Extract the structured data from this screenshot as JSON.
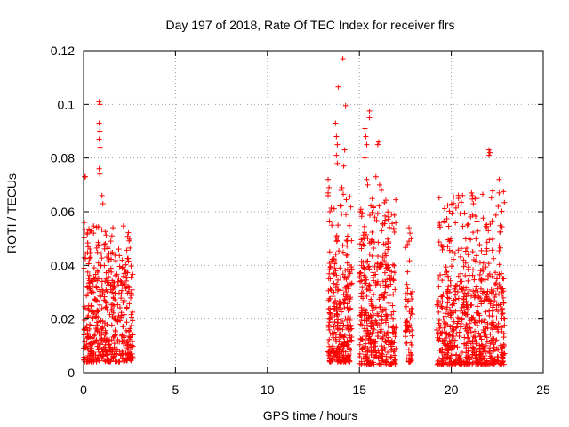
{
  "chart_data": {
    "type": "scatter",
    "title": "Day 197 of 2018, Rate Of TEC Index for receiver flrs",
    "xlabel": "GPS time / hours",
    "ylabel": "ROTI / TECUs",
    "xlim": [
      0,
      25
    ],
    "ylim": [
      0,
      0.12
    ],
    "grid": true,
    "legend": "none",
    "marker": "plus",
    "color": "#ff0000",
    "x_ticks": [
      {
        "value": 0,
        "label": "0"
      },
      {
        "value": 5,
        "label": "5"
      },
      {
        "value": 10,
        "label": "10"
      },
      {
        "value": 15,
        "label": "15"
      },
      {
        "value": 20,
        "label": "20"
      },
      {
        "value": 25,
        "label": "25"
      }
    ],
    "y_ticks": [
      {
        "value": 0,
        "label": "0"
      },
      {
        "value": 0.02,
        "label": "0.02"
      },
      {
        "value": 0.04,
        "label": "0.04"
      },
      {
        "value": 0.06,
        "label": "0.06"
      },
      {
        "value": 0.08,
        "label": "0.08"
      },
      {
        "value": 0.1,
        "label": "0.1"
      },
      {
        "value": 0.12,
        "label": "0.12"
      }
    ],
    "series": [
      {
        "name": "ROTI",
        "clusters": [
          {
            "x_range": [
              0.0,
              2.7
            ],
            "y_dense": [
              0.004,
              0.035
            ],
            "y_peak": 0.055,
            "points": 520
          },
          {
            "x_range": [
              13.3,
              14.6
            ],
            "y_dense": [
              0.004,
              0.04
            ],
            "y_peak": 0.068,
            "points": 300
          },
          {
            "x_range": [
              15.0,
              17.0
            ],
            "y_dense": [
              0.003,
              0.04
            ],
            "y_peak": 0.065,
            "points": 420
          },
          {
            "x_range": [
              17.5,
              17.9
            ],
            "y_dense": [
              0.004,
              0.03
            ],
            "y_peak": 0.055,
            "points": 60
          },
          {
            "x_range": [
              19.2,
              22.9
            ],
            "y_dense": [
              0.003,
              0.035
            ],
            "y_peak": 0.068,
            "points": 700
          }
        ],
        "outliers": [
          {
            "x": 0.05,
            "y": 0.073
          },
          {
            "x": 0.1,
            "y": 0.073
          },
          {
            "x": 0.05,
            "y": 0.056
          },
          {
            "x": 0.85,
            "y": 0.101
          },
          {
            "x": 0.9,
            "y": 0.1
          },
          {
            "x": 0.85,
            "y": 0.093
          },
          {
            "x": 0.88,
            "y": 0.09
          },
          {
            "x": 0.85,
            "y": 0.087
          },
          {
            "x": 0.9,
            "y": 0.084
          },
          {
            "x": 0.85,
            "y": 0.076
          },
          {
            "x": 0.88,
            "y": 0.074
          },
          {
            "x": 1.0,
            "y": 0.066
          },
          {
            "x": 1.05,
            "y": 0.063
          },
          {
            "x": 1.6,
            "y": 0.054
          },
          {
            "x": 13.3,
            "y": 0.072
          },
          {
            "x": 13.35,
            "y": 0.069
          },
          {
            "x": 13.3,
            "y": 0.066
          },
          {
            "x": 13.7,
            "y": 0.093
          },
          {
            "x": 13.75,
            "y": 0.088
          },
          {
            "x": 13.8,
            "y": 0.085
          },
          {
            "x": 13.75,
            "y": 0.081
          },
          {
            "x": 13.8,
            "y": 0.078
          },
          {
            "x": 13.85,
            "y": 0.1065
          },
          {
            "x": 14.1,
            "y": 0.117
          },
          {
            "x": 14.25,
            "y": 0.0995
          },
          {
            "x": 14.2,
            "y": 0.083
          },
          {
            "x": 14.15,
            "y": 0.077
          },
          {
            "x": 14.05,
            "y": 0.069
          },
          {
            "x": 15.3,
            "y": 0.091
          },
          {
            "x": 15.35,
            "y": 0.088
          },
          {
            "x": 15.4,
            "y": 0.085
          },
          {
            "x": 15.3,
            "y": 0.08
          },
          {
            "x": 15.55,
            "y": 0.0975
          },
          {
            "x": 15.55,
            "y": 0.095
          },
          {
            "x": 15.4,
            "y": 0.072
          },
          {
            "x": 15.45,
            "y": 0.07
          },
          {
            "x": 16.05,
            "y": 0.086
          },
          {
            "x": 16.0,
            "y": 0.085
          },
          {
            "x": 15.9,
            "y": 0.073
          },
          {
            "x": 16.1,
            "y": 0.07
          },
          {
            "x": 16.2,
            "y": 0.068
          },
          {
            "x": 17.7,
            "y": 0.054
          },
          {
            "x": 17.75,
            "y": 0.052
          },
          {
            "x": 17.7,
            "y": 0.049
          },
          {
            "x": 19.9,
            "y": 0.049
          },
          {
            "x": 19.8,
            "y": 0.047
          },
          {
            "x": 21.1,
            "y": 0.067
          },
          {
            "x": 21.15,
            "y": 0.066
          },
          {
            "x": 21.2,
            "y": 0.063
          },
          {
            "x": 22.05,
            "y": 0.083
          },
          {
            "x": 22.1,
            "y": 0.082
          },
          {
            "x": 22.05,
            "y": 0.081
          },
          {
            "x": 22.6,
            "y": 0.072
          },
          {
            "x": 22.6,
            "y": 0.067
          },
          {
            "x": 22.55,
            "y": 0.062
          }
        ]
      }
    ]
  }
}
